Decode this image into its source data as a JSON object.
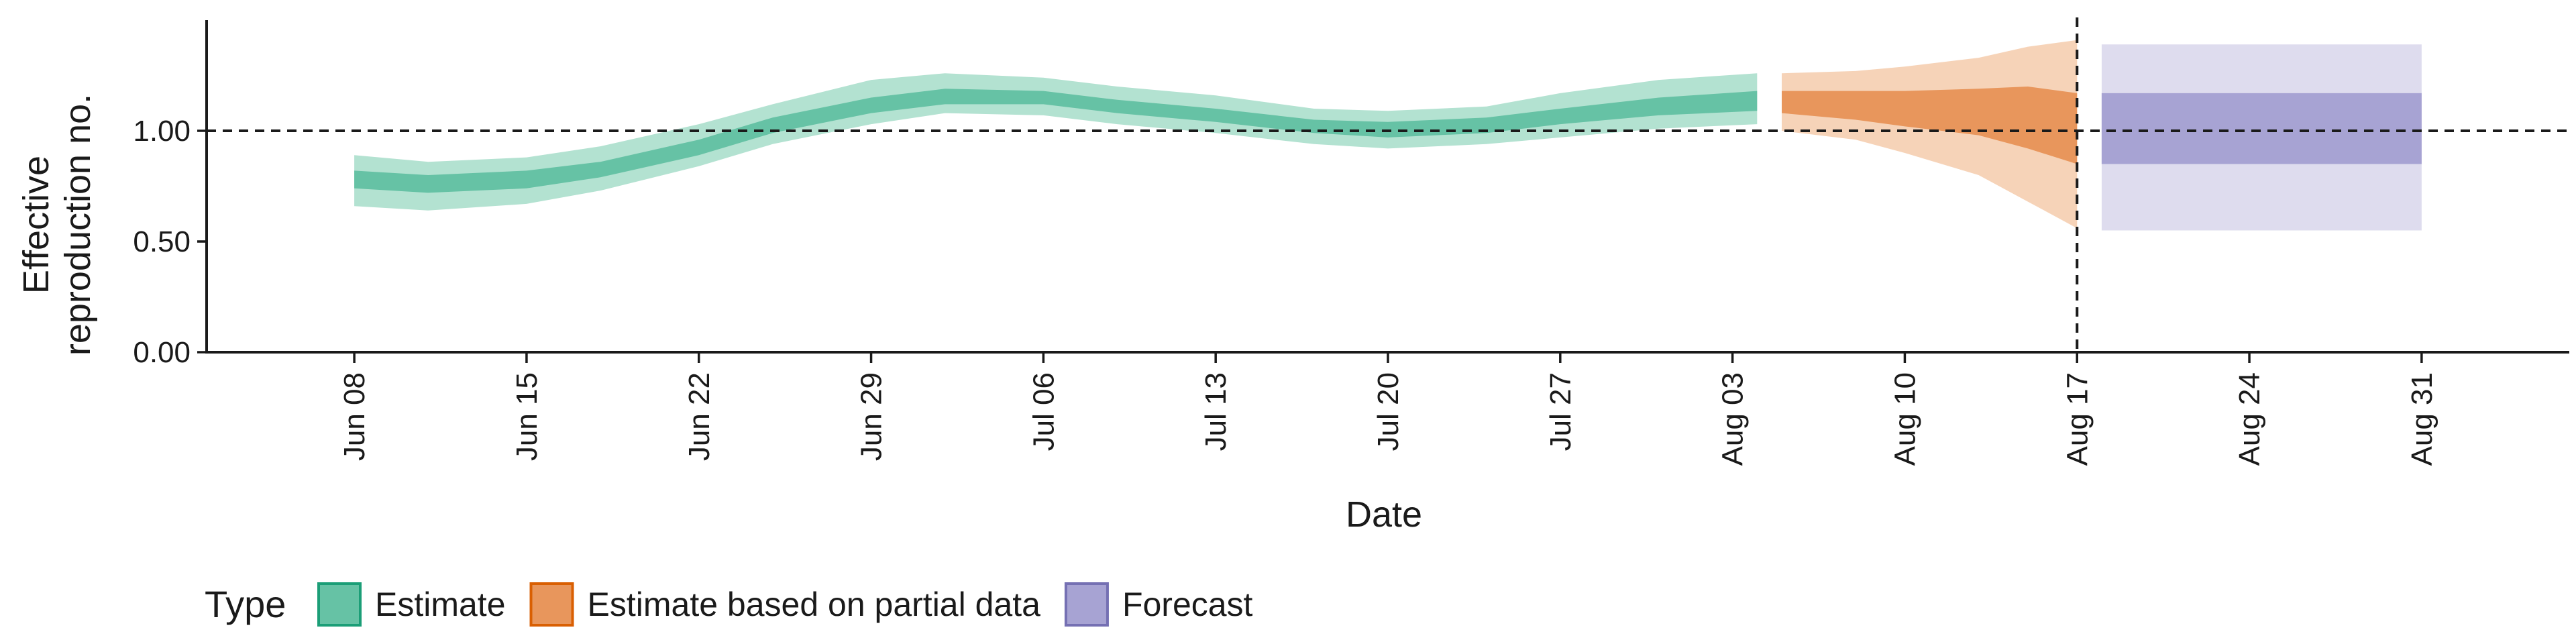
{
  "chart_data": {
    "type": "area",
    "title": "",
    "xlabel": "Date",
    "ylabel_lines": [
      "Effective",
      "reproduction no."
    ],
    "ylim": [
      0,
      1.5
    ],
    "xlim": [
      "2020-06-02",
      "2020-09-06"
    ],
    "y_ticks": [
      {
        "value": 0.0,
        "label": "0.00"
      },
      {
        "value": 0.5,
        "label": "0.50"
      },
      {
        "value": 1.0,
        "label": "1.00"
      }
    ],
    "x_ticks": [
      {
        "date": "2020-06-08",
        "label": "Jun 08"
      },
      {
        "date": "2020-06-15",
        "label": "Jun 15"
      },
      {
        "date": "2020-06-22",
        "label": "Jun 22"
      },
      {
        "date": "2020-06-29",
        "label": "Jun 29"
      },
      {
        "date": "2020-07-06",
        "label": "Jul 06"
      },
      {
        "date": "2020-07-13",
        "label": "Jul 13"
      },
      {
        "date": "2020-07-20",
        "label": "Jul 20"
      },
      {
        "date": "2020-07-27",
        "label": "Jul 27"
      },
      {
        "date": "2020-08-03",
        "label": "Aug 03"
      },
      {
        "date": "2020-08-10",
        "label": "Aug 10"
      },
      {
        "date": "2020-08-17",
        "label": "Aug 17"
      },
      {
        "date": "2020-08-24",
        "label": "Aug 24"
      },
      {
        "date": "2020-08-31",
        "label": "Aug 31"
      }
    ],
    "reference_line_y": 1.0,
    "reference_line_x": "2020-08-17",
    "grid": false,
    "legend_position": "bottom-left",
    "legend_title": "Type",
    "series": [
      {
        "name": "Estimate",
        "color": "#66C2A5",
        "outer_color": "#B3E2D1",
        "border_color": "#1B9E77",
        "points": [
          {
            "x": "2020-06-08",
            "lo90": 0.66,
            "lo50": 0.74,
            "hi50": 0.82,
            "hi90": 0.89
          },
          {
            "x": "2020-06-11",
            "lo90": 0.64,
            "lo50": 0.72,
            "hi50": 0.8,
            "hi90": 0.86
          },
          {
            "x": "2020-06-15",
            "lo90": 0.67,
            "lo50": 0.74,
            "hi50": 0.82,
            "hi90": 0.88
          },
          {
            "x": "2020-06-18",
            "lo90": 0.73,
            "lo50": 0.79,
            "hi50": 0.86,
            "hi90": 0.93
          },
          {
            "x": "2020-06-22",
            "lo90": 0.84,
            "lo50": 0.89,
            "hi50": 0.96,
            "hi90": 1.03
          },
          {
            "x": "2020-06-25",
            "lo90": 0.94,
            "lo50": 0.99,
            "hi50": 1.06,
            "hi90": 1.12
          },
          {
            "x": "2020-06-29",
            "lo90": 1.03,
            "lo50": 1.08,
            "hi50": 1.15,
            "hi90": 1.23
          },
          {
            "x": "2020-07-02",
            "lo90": 1.08,
            "lo50": 1.12,
            "hi50": 1.19,
            "hi90": 1.26
          },
          {
            "x": "2020-07-06",
            "lo90": 1.07,
            "lo50": 1.12,
            "hi50": 1.18,
            "hi90": 1.24
          },
          {
            "x": "2020-07-09",
            "lo90": 1.03,
            "lo50": 1.08,
            "hi50": 1.14,
            "hi90": 1.2
          },
          {
            "x": "2020-07-13",
            "lo90": 0.99,
            "lo50": 1.04,
            "hi50": 1.1,
            "hi90": 1.16
          },
          {
            "x": "2020-07-17",
            "lo90": 0.94,
            "lo50": 0.99,
            "hi50": 1.05,
            "hi90": 1.1
          },
          {
            "x": "2020-07-20",
            "lo90": 0.92,
            "lo50": 0.97,
            "hi50": 1.04,
            "hi90": 1.09
          },
          {
            "x": "2020-07-24",
            "lo90": 0.94,
            "lo50": 0.99,
            "hi50": 1.06,
            "hi90": 1.11
          },
          {
            "x": "2020-07-27",
            "lo90": 0.97,
            "lo50": 1.03,
            "hi50": 1.1,
            "hi90": 1.17
          },
          {
            "x": "2020-07-31",
            "lo90": 1.01,
            "lo50": 1.07,
            "hi50": 1.15,
            "hi90": 1.23
          },
          {
            "x": "2020-08-04",
            "lo90": 1.03,
            "lo50": 1.09,
            "hi50": 1.18,
            "hi90": 1.26
          }
        ]
      },
      {
        "name": "Estimate based on partial data",
        "color": "#E8965C",
        "outer_color": "#F6D3B8",
        "border_color": "#D95F02",
        "points": [
          {
            "x": "2020-08-05",
            "lo90": 1.0,
            "lo50": 1.08,
            "hi50": 1.18,
            "hi90": 1.26
          },
          {
            "x": "2020-08-08",
            "lo90": 0.96,
            "lo50": 1.05,
            "hi50": 1.18,
            "hi90": 1.27
          },
          {
            "x": "2020-08-10",
            "lo90": 0.9,
            "lo50": 1.02,
            "hi50": 1.18,
            "hi90": 1.29
          },
          {
            "x": "2020-08-13",
            "lo90": 0.8,
            "lo50": 0.98,
            "hi50": 1.19,
            "hi90": 1.33
          },
          {
            "x": "2020-08-15",
            "lo90": 0.68,
            "lo50": 0.92,
            "hi50": 1.2,
            "hi90": 1.38
          },
          {
            "x": "2020-08-17",
            "lo90": 0.56,
            "lo50": 0.85,
            "hi50": 1.17,
            "hi90": 1.41
          }
        ]
      },
      {
        "name": "Forecast",
        "color": "#A7A3D3",
        "outer_color": "#DEDCEE",
        "border_color": "#7570B3",
        "points": [
          {
            "x": "2020-08-18",
            "lo90": 0.55,
            "lo50": 0.85,
            "hi50": 1.17,
            "hi90": 1.39
          },
          {
            "x": "2020-08-31",
            "lo90": 0.55,
            "lo50": 0.85,
            "hi50": 1.17,
            "hi90": 1.39
          }
        ]
      }
    ]
  }
}
